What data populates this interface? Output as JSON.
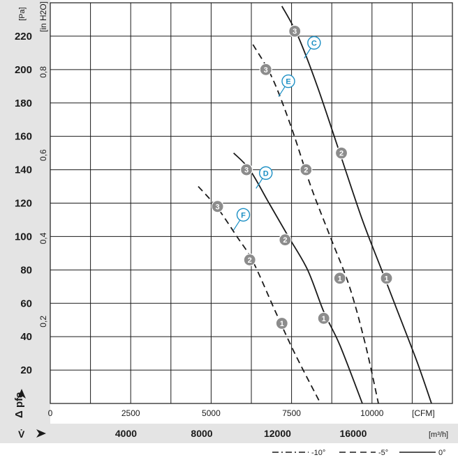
{
  "chart_data": {
    "type": "line",
    "title": "",
    "y_axis": {
      "label": "Δ pfa",
      "unit": "[Pa]",
      "range": [
        0,
        240
      ],
      "ticks": [
        20,
        40,
        60,
        80,
        100,
        120,
        140,
        160,
        180,
        200,
        220
      ]
    },
    "y2_axis": {
      "unit": "[in H2O]",
      "ticks": [
        {
          "label": "0,2",
          "pa": 49.8
        },
        {
          "label": "0,4",
          "pa": 99.6
        },
        {
          "label": "0,6",
          "pa": 149.4
        },
        {
          "label": "0,8",
          "pa": 199.2
        }
      ]
    },
    "x_axis": {
      "unit": "[CFM]",
      "range": [
        0,
        12500
      ],
      "ticks": [
        {
          "label": "0",
          "v": 0
        },
        {
          "label": "2500",
          "v": 2500
        },
        {
          "label": "5000",
          "v": 5000
        },
        {
          "label": "7500",
          "v": 7500
        },
        {
          "label": "10000",
          "v": 10000
        }
      ]
    },
    "x2_axis": {
      "label": "V̇",
      "unit": "[m³/h]",
      "ticks": [
        {
          "label": "4000",
          "cfm": 2354
        },
        {
          "label": "8000",
          "cfm": 4709
        },
        {
          "label": "12000",
          "cfm": 7063
        },
        {
          "label": "16000",
          "cfm": 9417
        }
      ]
    },
    "grid": true,
    "legend": {
      "position": "bottom-right",
      "entries": [
        {
          "label": "-10°",
          "style": "dash-dot"
        },
        {
          "label": "-5°",
          "style": "dashed"
        },
        {
          "label": "0°",
          "style": "solid"
        }
      ]
    },
    "series": [
      {
        "name": "C",
        "style": "solid",
        "points": [
          [
            7200,
            238
          ],
          [
            7700,
            220
          ],
          [
            8300,
            190
          ],
          [
            9000,
            150
          ],
          [
            9700,
            110
          ],
          [
            10300,
            80
          ],
          [
            10800,
            55
          ],
          [
            11400,
            25
          ],
          [
            11850,
            0
          ]
        ]
      },
      {
        "name": "E",
        "style": "dashed",
        "points": [
          [
            6300,
            215
          ],
          [
            6900,
            195
          ],
          [
            7500,
            165
          ],
          [
            8100,
            130
          ],
          [
            8700,
            100
          ],
          [
            9300,
            70
          ],
          [
            9800,
            35
          ],
          [
            10200,
            0
          ]
        ]
      },
      {
        "name": "D",
        "style": "solid",
        "points": [
          [
            5700,
            150
          ],
          [
            6200,
            140
          ],
          [
            6800,
            120
          ],
          [
            7400,
            100
          ],
          [
            8000,
            80
          ],
          [
            8500,
            55
          ],
          [
            9000,
            35
          ],
          [
            9700,
            0
          ]
        ]
      },
      {
        "name": "F",
        "style": "dashed",
        "points": [
          [
            4600,
            130
          ],
          [
            5200,
            117
          ],
          [
            5800,
            100
          ],
          [
            6300,
            85
          ],
          [
            7000,
            55
          ],
          [
            7600,
            30
          ],
          [
            8400,
            0
          ]
        ]
      }
    ],
    "markers": [
      {
        "label": "3",
        "cfm": 7600,
        "pa": 223
      },
      {
        "label": "2",
        "cfm": 9050,
        "pa": 150
      },
      {
        "label": "1",
        "cfm": 10450,
        "pa": 75
      },
      {
        "label": "3",
        "cfm": 6700,
        "pa": 200
      },
      {
        "label": "2",
        "cfm": 7950,
        "pa": 140
      },
      {
        "label": "1",
        "cfm": 9000,
        "pa": 75
      },
      {
        "label": "3",
        "cfm": 6100,
        "pa": 140
      },
      {
        "label": "2",
        "cfm": 7300,
        "pa": 98
      },
      {
        "label": "1",
        "cfm": 8500,
        "pa": 51
      },
      {
        "label": "3",
        "cfm": 5200,
        "pa": 118
      },
      {
        "label": "2",
        "cfm": 6200,
        "pa": 86
      },
      {
        "label": "1",
        "cfm": 7200,
        "pa": 48
      }
    ],
    "curve_labels": [
      {
        "label": "C",
        "cfm": 8200,
        "pa": 216
      },
      {
        "label": "E",
        "cfm": 7400,
        "pa": 193
      },
      {
        "label": "D",
        "cfm": 6700,
        "pa": 138
      },
      {
        "label": "F",
        "cfm": 6000,
        "pa": 113
      }
    ]
  }
}
